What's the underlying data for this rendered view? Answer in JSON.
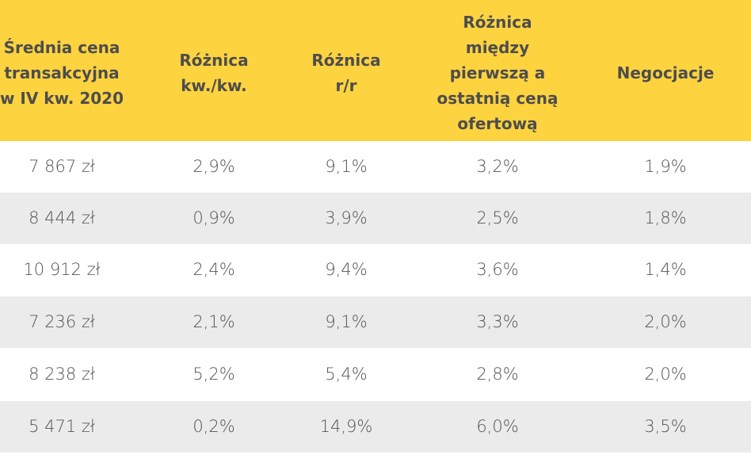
{
  "table": {
    "header": [
      [
        "Średnia cena",
        "transakcyjna",
        "w IV kw. 2020"
      ],
      [
        "Różnica",
        "kw./kw."
      ],
      [
        "Różnica",
        "r/r"
      ],
      [
        "Różnica",
        "między",
        "pierwszą a",
        "ostatnią ceną",
        "ofertową"
      ],
      [
        "Negocjacje"
      ]
    ],
    "rows": [
      [
        "7 867 zł",
        "2,9%",
        "9,1%",
        "3,2%",
        "1,9%"
      ],
      [
        "8 444 zł",
        "0,9%",
        "3,9%",
        "2,5%",
        "1,8%"
      ],
      [
        "10 912 zł",
        "2,4%",
        "9,4%",
        "3,6%",
        "1,4%"
      ],
      [
        "7 236 zł",
        "2,1%",
        "9,1%",
        "3,3%",
        "2,0%"
      ],
      [
        "8 238 zł",
        "5,2%",
        "5,4%",
        "2,8%",
        "2,0%"
      ],
      [
        "5 471 zł",
        "0,2%",
        "14,9%",
        "6,0%",
        "3,5%"
      ]
    ]
  }
}
